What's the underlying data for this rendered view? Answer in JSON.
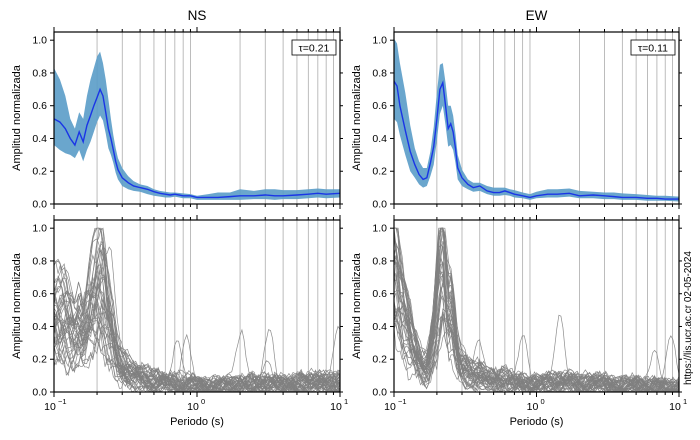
{
  "figure": {
    "watermark": "https://lis.ucr.ac.cr 02-05-2024",
    "colors": {
      "mean_line": "#1a35e6",
      "band": "#5a9cc8",
      "traces": "#808080",
      "vgrid": "#a0a0a0",
      "frame": "#000000"
    }
  },
  "chart_data": [
    {
      "id": "ns-mean",
      "type": "area",
      "title": "NS",
      "xlabel": "",
      "ylabel": "Amplitud normalizada",
      "xscale": "log",
      "xlim": [
        0.1,
        10
      ],
      "ylim": [
        0,
        1.05
      ],
      "y_ticks": [
        "0.0",
        "0.2",
        "0.4",
        "0.6",
        "0.8",
        "1.0"
      ],
      "tau_label": "τ=0.21",
      "tau_box_placement": "top-right",
      "vertical_lines_x": [
        0.2,
        0.3,
        0.4,
        0.5,
        0.6,
        0.7,
        0.8,
        0.9,
        2,
        3,
        4,
        5,
        6,
        7,
        8,
        9
      ],
      "x": [
        0.1,
        0.11,
        0.12,
        0.13,
        0.14,
        0.15,
        0.16,
        0.17,
        0.18,
        0.19,
        0.2,
        0.21,
        0.22,
        0.23,
        0.24,
        0.25,
        0.26,
        0.27,
        0.28,
        0.3,
        0.33,
        0.36,
        0.4,
        0.45,
        0.5,
        0.55,
        0.6,
        0.65,
        0.7,
        0.8,
        0.9,
        1.0,
        1.2,
        1.4,
        1.7,
        2.0,
        2.5,
        3.0,
        3.5,
        4.0,
        5.0,
        6.0,
        7.0,
        8.0,
        10.0
      ],
      "mean": [
        0.52,
        0.5,
        0.46,
        0.4,
        0.36,
        0.44,
        0.38,
        0.48,
        0.54,
        0.6,
        0.65,
        0.7,
        0.66,
        0.56,
        0.46,
        0.4,
        0.33,
        0.26,
        0.21,
        0.16,
        0.13,
        0.11,
        0.1,
        0.09,
        0.075,
        0.065,
        0.06,
        0.055,
        0.06,
        0.05,
        0.05,
        0.04,
        0.04,
        0.04,
        0.045,
        0.05,
        0.05,
        0.055,
        0.05,
        0.05,
        0.055,
        0.06,
        0.065,
        0.06,
        0.065
      ],
      "upper": [
        0.83,
        0.76,
        0.66,
        0.52,
        0.46,
        0.56,
        0.52,
        0.66,
        0.76,
        0.83,
        0.9,
        0.93,
        0.86,
        0.76,
        0.64,
        0.52,
        0.42,
        0.34,
        0.28,
        0.22,
        0.17,
        0.14,
        0.12,
        0.11,
        0.09,
        0.08,
        0.075,
        0.07,
        0.07,
        0.065,
        0.06,
        0.05,
        0.06,
        0.07,
        0.07,
        0.09,
        0.08,
        0.09,
        0.09,
        0.085,
        0.085,
        0.09,
        0.095,
        0.09,
        0.09
      ],
      "lower": [
        0.36,
        0.33,
        0.31,
        0.3,
        0.28,
        0.33,
        0.26,
        0.33,
        0.38,
        0.44,
        0.5,
        0.54,
        0.51,
        0.43,
        0.34,
        0.3,
        0.25,
        0.19,
        0.15,
        0.11,
        0.09,
        0.08,
        0.075,
        0.06,
        0.05,
        0.045,
        0.04,
        0.04,
        0.045,
        0.035,
        0.035,
        0.025,
        0.025,
        0.025,
        0.025,
        0.025,
        0.03,
        0.03,
        0.025,
        0.03,
        0.03,
        0.035,
        0.04,
        0.035,
        0.04
      ]
    },
    {
      "id": "ew-mean",
      "type": "area",
      "title": "EW",
      "xlabel": "",
      "ylabel": "Amplitud normalizada",
      "xscale": "log",
      "xlim": [
        0.1,
        10
      ],
      "ylim": [
        0,
        1.05
      ],
      "y_ticks": [
        "0.0",
        "0.2",
        "0.4",
        "0.6",
        "0.8",
        "1.0"
      ],
      "tau_label": "τ=0.11",
      "tau_box_placement": "top-right",
      "vertical_lines_x": [
        0.2,
        0.3,
        0.4,
        0.5,
        0.6,
        0.7,
        0.8,
        0.9,
        2,
        3,
        4,
        5,
        6,
        7,
        8,
        9
      ],
      "x": [
        0.1,
        0.105,
        0.11,
        0.12,
        0.13,
        0.14,
        0.15,
        0.16,
        0.17,
        0.18,
        0.19,
        0.2,
        0.21,
        0.22,
        0.23,
        0.24,
        0.25,
        0.26,
        0.27,
        0.28,
        0.3,
        0.33,
        0.36,
        0.4,
        0.45,
        0.5,
        0.55,
        0.6,
        0.65,
        0.7,
        0.8,
        0.9,
        1.0,
        1.2,
        1.4,
        1.7,
        2.0,
        2.5,
        3.0,
        3.5,
        4.0,
        5.0,
        6.0,
        7.0,
        8.0,
        10.0
      ],
      "mean": [
        0.75,
        0.72,
        0.6,
        0.45,
        0.32,
        0.24,
        0.18,
        0.15,
        0.16,
        0.25,
        0.35,
        0.52,
        0.7,
        0.74,
        0.6,
        0.46,
        0.49,
        0.44,
        0.34,
        0.22,
        0.16,
        0.12,
        0.1,
        0.11,
        0.08,
        0.07,
        0.07,
        0.08,
        0.07,
        0.06,
        0.05,
        0.04,
        0.05,
        0.06,
        0.06,
        0.065,
        0.05,
        0.055,
        0.05,
        0.045,
        0.04,
        0.04,
        0.035,
        0.035,
        0.03,
        0.03
      ],
      "upper": [
        1.01,
        0.98,
        0.86,
        0.68,
        0.48,
        0.34,
        0.26,
        0.22,
        0.22,
        0.32,
        0.47,
        0.68,
        0.85,
        0.86,
        0.74,
        0.6,
        0.6,
        0.54,
        0.43,
        0.3,
        0.21,
        0.15,
        0.13,
        0.13,
        0.11,
        0.1,
        0.1,
        0.1,
        0.09,
        0.085,
        0.07,
        0.06,
        0.075,
        0.09,
        0.09,
        0.095,
        0.08,
        0.075,
        0.07,
        0.07,
        0.065,
        0.06,
        0.055,
        0.05,
        0.05,
        0.045
      ],
      "lower": [
        0.52,
        0.5,
        0.42,
        0.3,
        0.2,
        0.16,
        0.12,
        0.1,
        0.11,
        0.17,
        0.24,
        0.39,
        0.55,
        0.6,
        0.48,
        0.35,
        0.36,
        0.33,
        0.25,
        0.15,
        0.11,
        0.09,
        0.075,
        0.08,
        0.06,
        0.05,
        0.05,
        0.055,
        0.05,
        0.04,
        0.035,
        0.025,
        0.035,
        0.04,
        0.04,
        0.045,
        0.035,
        0.035,
        0.03,
        0.03,
        0.025,
        0.025,
        0.02,
        0.02,
        0.02,
        0.015
      ]
    },
    {
      "id": "ns-traces",
      "type": "line",
      "title": "",
      "xlabel": "Periodo (s)",
      "ylabel": "Amplitud normalizada",
      "xscale": "log",
      "xlim": [
        0.1,
        10
      ],
      "ylim": [
        0,
        1.05
      ],
      "y_ticks": [
        "0.0",
        "0.2",
        "0.4",
        "0.6",
        "0.8",
        "1.0"
      ],
      "x_ticks": [
        "10",
        "10",
        "10"
      ],
      "x_tick_exponents": [
        "−1",
        "0",
        "1"
      ],
      "vertical_lines_x": [
        0.2,
        0.3,
        0.4,
        0.5,
        0.6,
        0.7,
        0.8,
        0.9,
        2,
        3,
        4,
        5,
        6,
        7,
        8,
        9
      ],
      "trace_count": 40,
      "x": [
        0.1,
        0.11,
        0.12,
        0.13,
        0.14,
        0.15,
        0.16,
        0.17,
        0.18,
        0.19,
        0.2,
        0.21,
        0.22,
        0.23,
        0.24,
        0.25,
        0.26,
        0.27,
        0.28,
        0.3,
        0.33,
        0.36,
        0.4,
        0.45,
        0.5,
        0.55,
        0.6,
        0.65,
        0.7,
        0.8,
        0.9,
        1.0,
        1.2,
        1.4,
        1.7,
        2.0,
        2.5,
        3.0,
        3.5,
        4.0,
        5.0,
        6.0,
        7.0,
        8.0,
        10.0
      ],
      "mean": [
        0.52,
        0.5,
        0.46,
        0.4,
        0.36,
        0.44,
        0.38,
        0.48,
        0.54,
        0.6,
        0.65,
        0.7,
        0.66,
        0.56,
        0.46,
        0.4,
        0.33,
        0.26,
        0.21,
        0.16,
        0.13,
        0.11,
        0.1,
        0.09,
        0.075,
        0.065,
        0.06,
        0.055,
        0.06,
        0.05,
        0.05,
        0.04,
        0.04,
        0.04,
        0.045,
        0.05,
        0.05,
        0.055,
        0.05,
        0.05,
        0.055,
        0.06,
        0.065,
        0.06,
        0.065
      ]
    },
    {
      "id": "ew-traces",
      "type": "line",
      "title": "",
      "xlabel": "Periodo (s)",
      "ylabel": "Amplitud normalizada",
      "xscale": "log",
      "xlim": [
        0.1,
        10
      ],
      "ylim": [
        0,
        1.05
      ],
      "y_ticks": [
        "0.0",
        "0.2",
        "0.4",
        "0.6",
        "0.8",
        "1.0"
      ],
      "x_ticks": [
        "10",
        "10",
        "10"
      ],
      "x_tick_exponents": [
        "−1",
        "0",
        "1"
      ],
      "vertical_lines_x": [
        0.2,
        0.3,
        0.4,
        0.5,
        0.6,
        0.7,
        0.8,
        0.9,
        2,
        3,
        4,
        5,
        6,
        7,
        8,
        9
      ],
      "trace_count": 40,
      "x": [
        0.1,
        0.105,
        0.11,
        0.12,
        0.13,
        0.14,
        0.15,
        0.16,
        0.17,
        0.18,
        0.19,
        0.2,
        0.21,
        0.22,
        0.23,
        0.24,
        0.25,
        0.26,
        0.27,
        0.28,
        0.3,
        0.33,
        0.36,
        0.4,
        0.45,
        0.5,
        0.55,
        0.6,
        0.65,
        0.7,
        0.8,
        0.9,
        1.0,
        1.2,
        1.4,
        1.7,
        2.0,
        2.5,
        3.0,
        3.5,
        4.0,
        5.0,
        6.0,
        7.0,
        8.0,
        10.0
      ],
      "mean": [
        0.75,
        0.72,
        0.6,
        0.45,
        0.32,
        0.24,
        0.18,
        0.15,
        0.16,
        0.25,
        0.35,
        0.52,
        0.7,
        0.74,
        0.6,
        0.46,
        0.49,
        0.44,
        0.34,
        0.22,
        0.16,
        0.12,
        0.1,
        0.11,
        0.08,
        0.07,
        0.07,
        0.08,
        0.07,
        0.06,
        0.05,
        0.04,
        0.05,
        0.06,
        0.06,
        0.065,
        0.05,
        0.055,
        0.05,
        0.045,
        0.04,
        0.04,
        0.035,
        0.035,
        0.03,
        0.03
      ]
    }
  ]
}
